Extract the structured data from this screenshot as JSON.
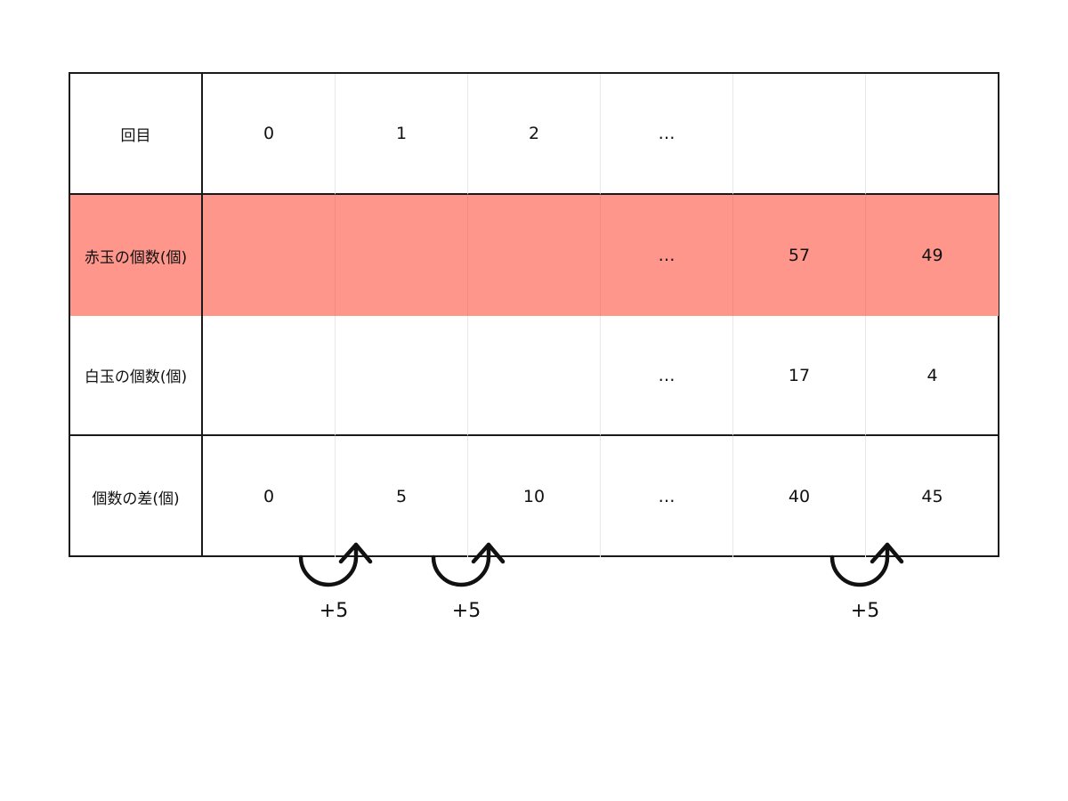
{
  "table": {
    "rows": [
      {
        "header": "回目",
        "cells": [
          "0",
          "1",
          "2",
          "…",
          "",
          ""
        ]
      },
      {
        "header": "赤玉の個数(個)",
        "cells": [
          "",
          "",
          "",
          "…",
          "57",
          "49"
        ]
      },
      {
        "header": "白玉の個数(個)",
        "cells": [
          "",
          "",
          "",
          "…",
          "17",
          "4"
        ]
      },
      {
        "header": "個数の差(個)",
        "cells": [
          "0",
          "5",
          "10",
          "…",
          "40",
          "45"
        ]
      }
    ]
  },
  "steps": [
    {
      "label": "+5"
    },
    {
      "label": "+5"
    },
    {
      "label": "+5"
    }
  ],
  "colors": {
    "highlight_row": "#ff968c",
    "border": "#1a1a1a"
  }
}
